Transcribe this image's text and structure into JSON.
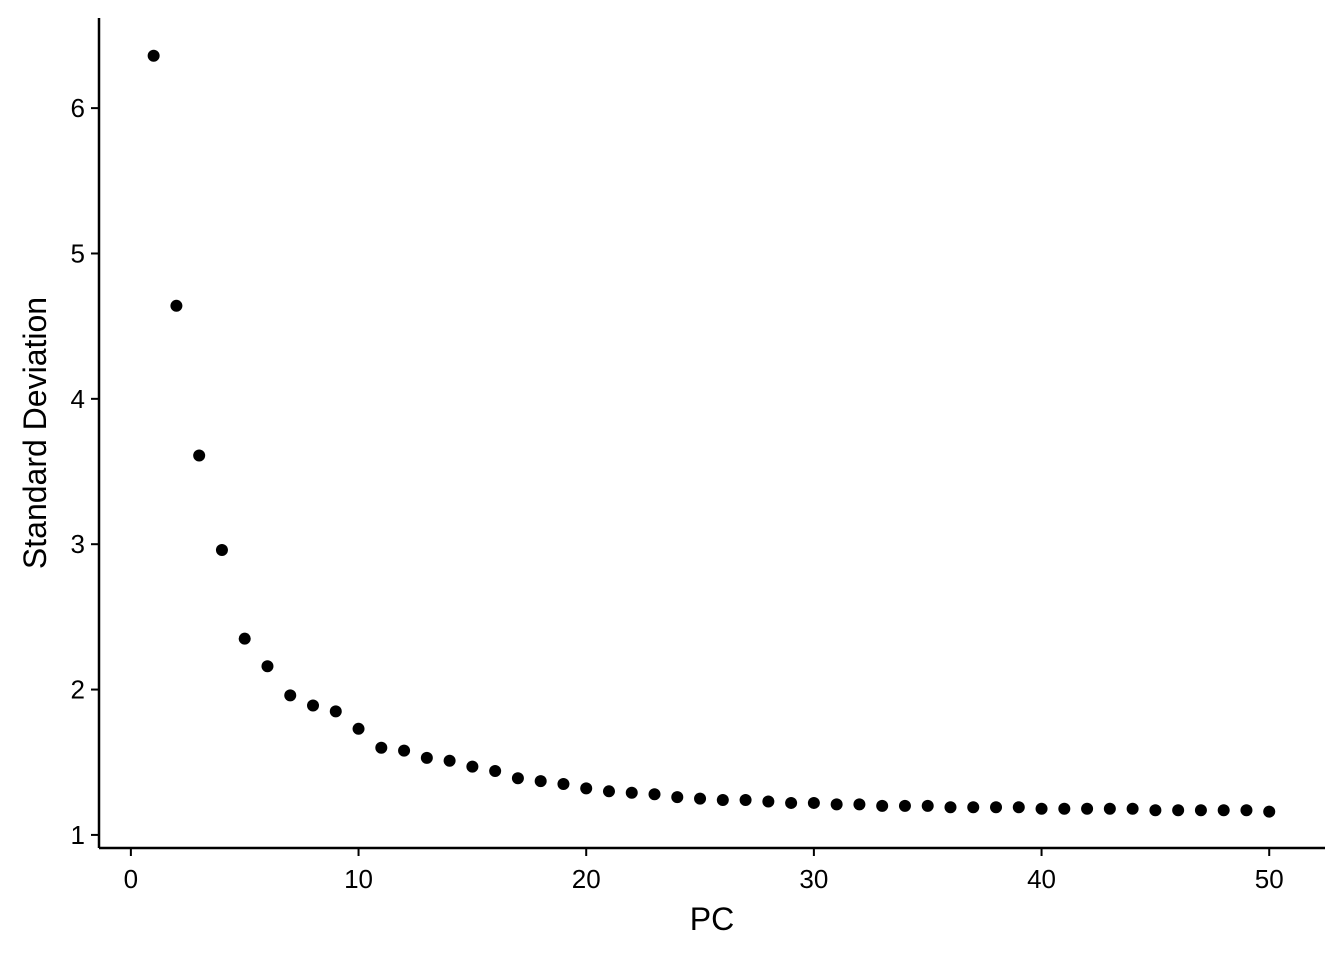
{
  "chart_data": {
    "type": "scatter",
    "x_label": "PC",
    "y_label": "Standard Deviation",
    "color": "#000000",
    "x": [
      1,
      2,
      3,
      4,
      5,
      6,
      7,
      8,
      9,
      10,
      11,
      12,
      13,
      14,
      15,
      16,
      17,
      18,
      19,
      20,
      21,
      22,
      23,
      24,
      25,
      26,
      27,
      28,
      29,
      30,
      31,
      32,
      33,
      34,
      35,
      36,
      37,
      38,
      39,
      40,
      41,
      42,
      43,
      44,
      45,
      46,
      47,
      48,
      49,
      50
    ],
    "values": [
      6.36,
      4.64,
      3.61,
      2.96,
      2.35,
      2.16,
      1.96,
      1.89,
      1.85,
      1.73,
      1.6,
      1.58,
      1.53,
      1.51,
      1.47,
      1.44,
      1.39,
      1.37,
      1.35,
      1.32,
      1.3,
      1.29,
      1.28,
      1.26,
      1.25,
      1.24,
      1.24,
      1.23,
      1.22,
      1.22,
      1.21,
      1.21,
      1.2,
      1.2,
      1.2,
      1.19,
      1.19,
      1.19,
      1.19,
      1.18,
      1.18,
      1.18,
      1.18,
      1.18,
      1.17,
      1.17,
      1.17,
      1.17,
      1.17,
      1.16
    ],
    "xlim": [
      -1.4,
      52.45
    ],
    "ylim": [
      0.91,
      6.62
    ],
    "xticks": [
      0,
      10,
      20,
      30,
      40,
      50
    ],
    "yticks": [
      1,
      2,
      3,
      4,
      5,
      6
    ],
    "grid": false
  }
}
